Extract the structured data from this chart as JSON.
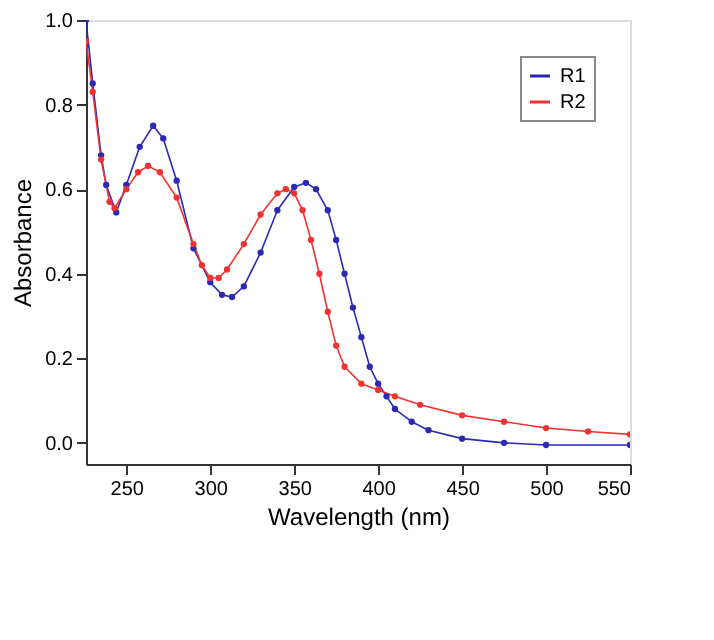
{
  "chart_data": {
    "type": "line",
    "xlabel": "Wavelength (nm)",
    "ylabel": "Absorbance",
    "xlim": [
      226,
      550
    ],
    "xticks": [
      250,
      300,
      350,
      400,
      450,
      500,
      550
    ],
    "ylim": [
      -0.05,
      1.0
    ],
    "yticks": [
      {
        "value": 0,
        "label": "0.0"
      },
      0.2,
      0.4,
      0.6,
      0.8,
      {
        "value": 1.0,
        "label": "1.0"
      }
    ],
    "marker": "circle",
    "legend": "top right",
    "grid": false,
    "series": [
      {
        "name": "R1",
        "color": "#2a2ab4",
        "x": [
          226,
          230,
          235,
          238,
          244,
          250,
          258,
          266,
          272,
          280,
          290,
          300,
          307,
          313,
          320,
          330,
          340,
          350,
          357,
          363,
          370,
          375,
          380,
          385,
          390,
          395,
          400,
          405,
          410,
          420,
          430,
          450,
          475,
          500,
          550
        ],
        "values": [
          1.0,
          0.85,
          0.68,
          0.61,
          0.545,
          0.61,
          0.7,
          0.75,
          0.72,
          0.62,
          0.46,
          0.38,
          0.35,
          0.345,
          0.37,
          0.45,
          0.55,
          0.605,
          0.615,
          0.6,
          0.55,
          0.48,
          0.4,
          0.32,
          0.25,
          0.18,
          0.14,
          0.11,
          0.08,
          0.05,
          0.03,
          0.01,
          0.0,
          -0.005,
          -0.005
        ]
      },
      {
        "name": "R2",
        "color": "#f03232",
        "x": [
          226,
          230,
          235,
          240,
          243,
          250,
          257,
          263,
          270,
          280,
          290,
          295,
          300,
          305,
          310,
          320,
          330,
          340,
          345,
          350,
          355,
          360,
          365,
          370,
          375,
          380,
          390,
          400,
          410,
          425,
          450,
          475,
          500,
          525,
          550
        ],
        "values": [
          0.95,
          0.83,
          0.67,
          0.57,
          0.555,
          0.6,
          0.64,
          0.655,
          0.64,
          0.58,
          0.47,
          0.42,
          0.39,
          0.39,
          0.41,
          0.47,
          0.54,
          0.59,
          0.6,
          0.59,
          0.55,
          0.48,
          0.4,
          0.31,
          0.23,
          0.18,
          0.14,
          0.125,
          0.11,
          0.09,
          0.065,
          0.05,
          0.035,
          0.027,
          0.02
        ]
      }
    ]
  }
}
